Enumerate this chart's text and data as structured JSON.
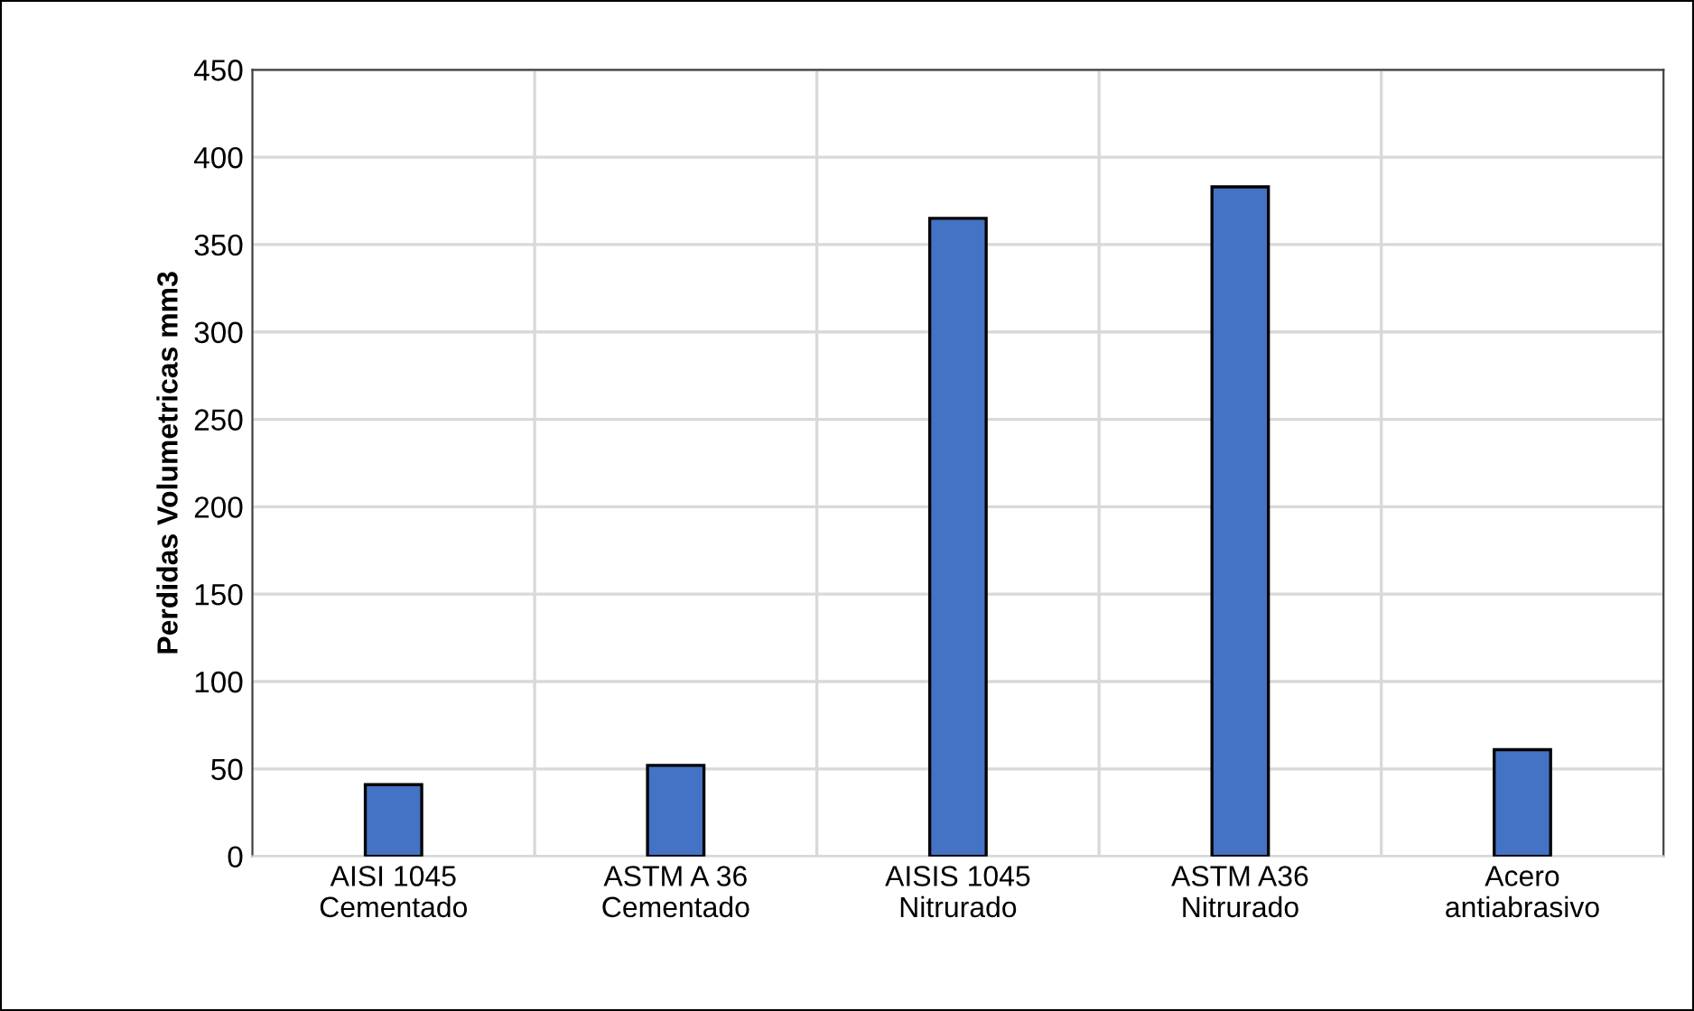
{
  "chart_data": {
    "type": "bar",
    "ylabel": "Perdidas Volumetricas mm3",
    "categories": [
      "AISI 1045\nCementado",
      "ASTM A 36\nCementado",
      "AISIS 1045\nNitrurado",
      "ASTM A36\nNitrurado",
      "Acero\nantiabrasivo"
    ],
    "values": [
      41,
      52,
      365,
      383,
      61
    ],
    "color": "#4472c4",
    "ylim": [
      0,
      450
    ],
    "yticks": [
      0,
      50,
      100,
      150,
      200,
      250,
      300,
      350,
      400,
      450
    ],
    "grid": true
  }
}
